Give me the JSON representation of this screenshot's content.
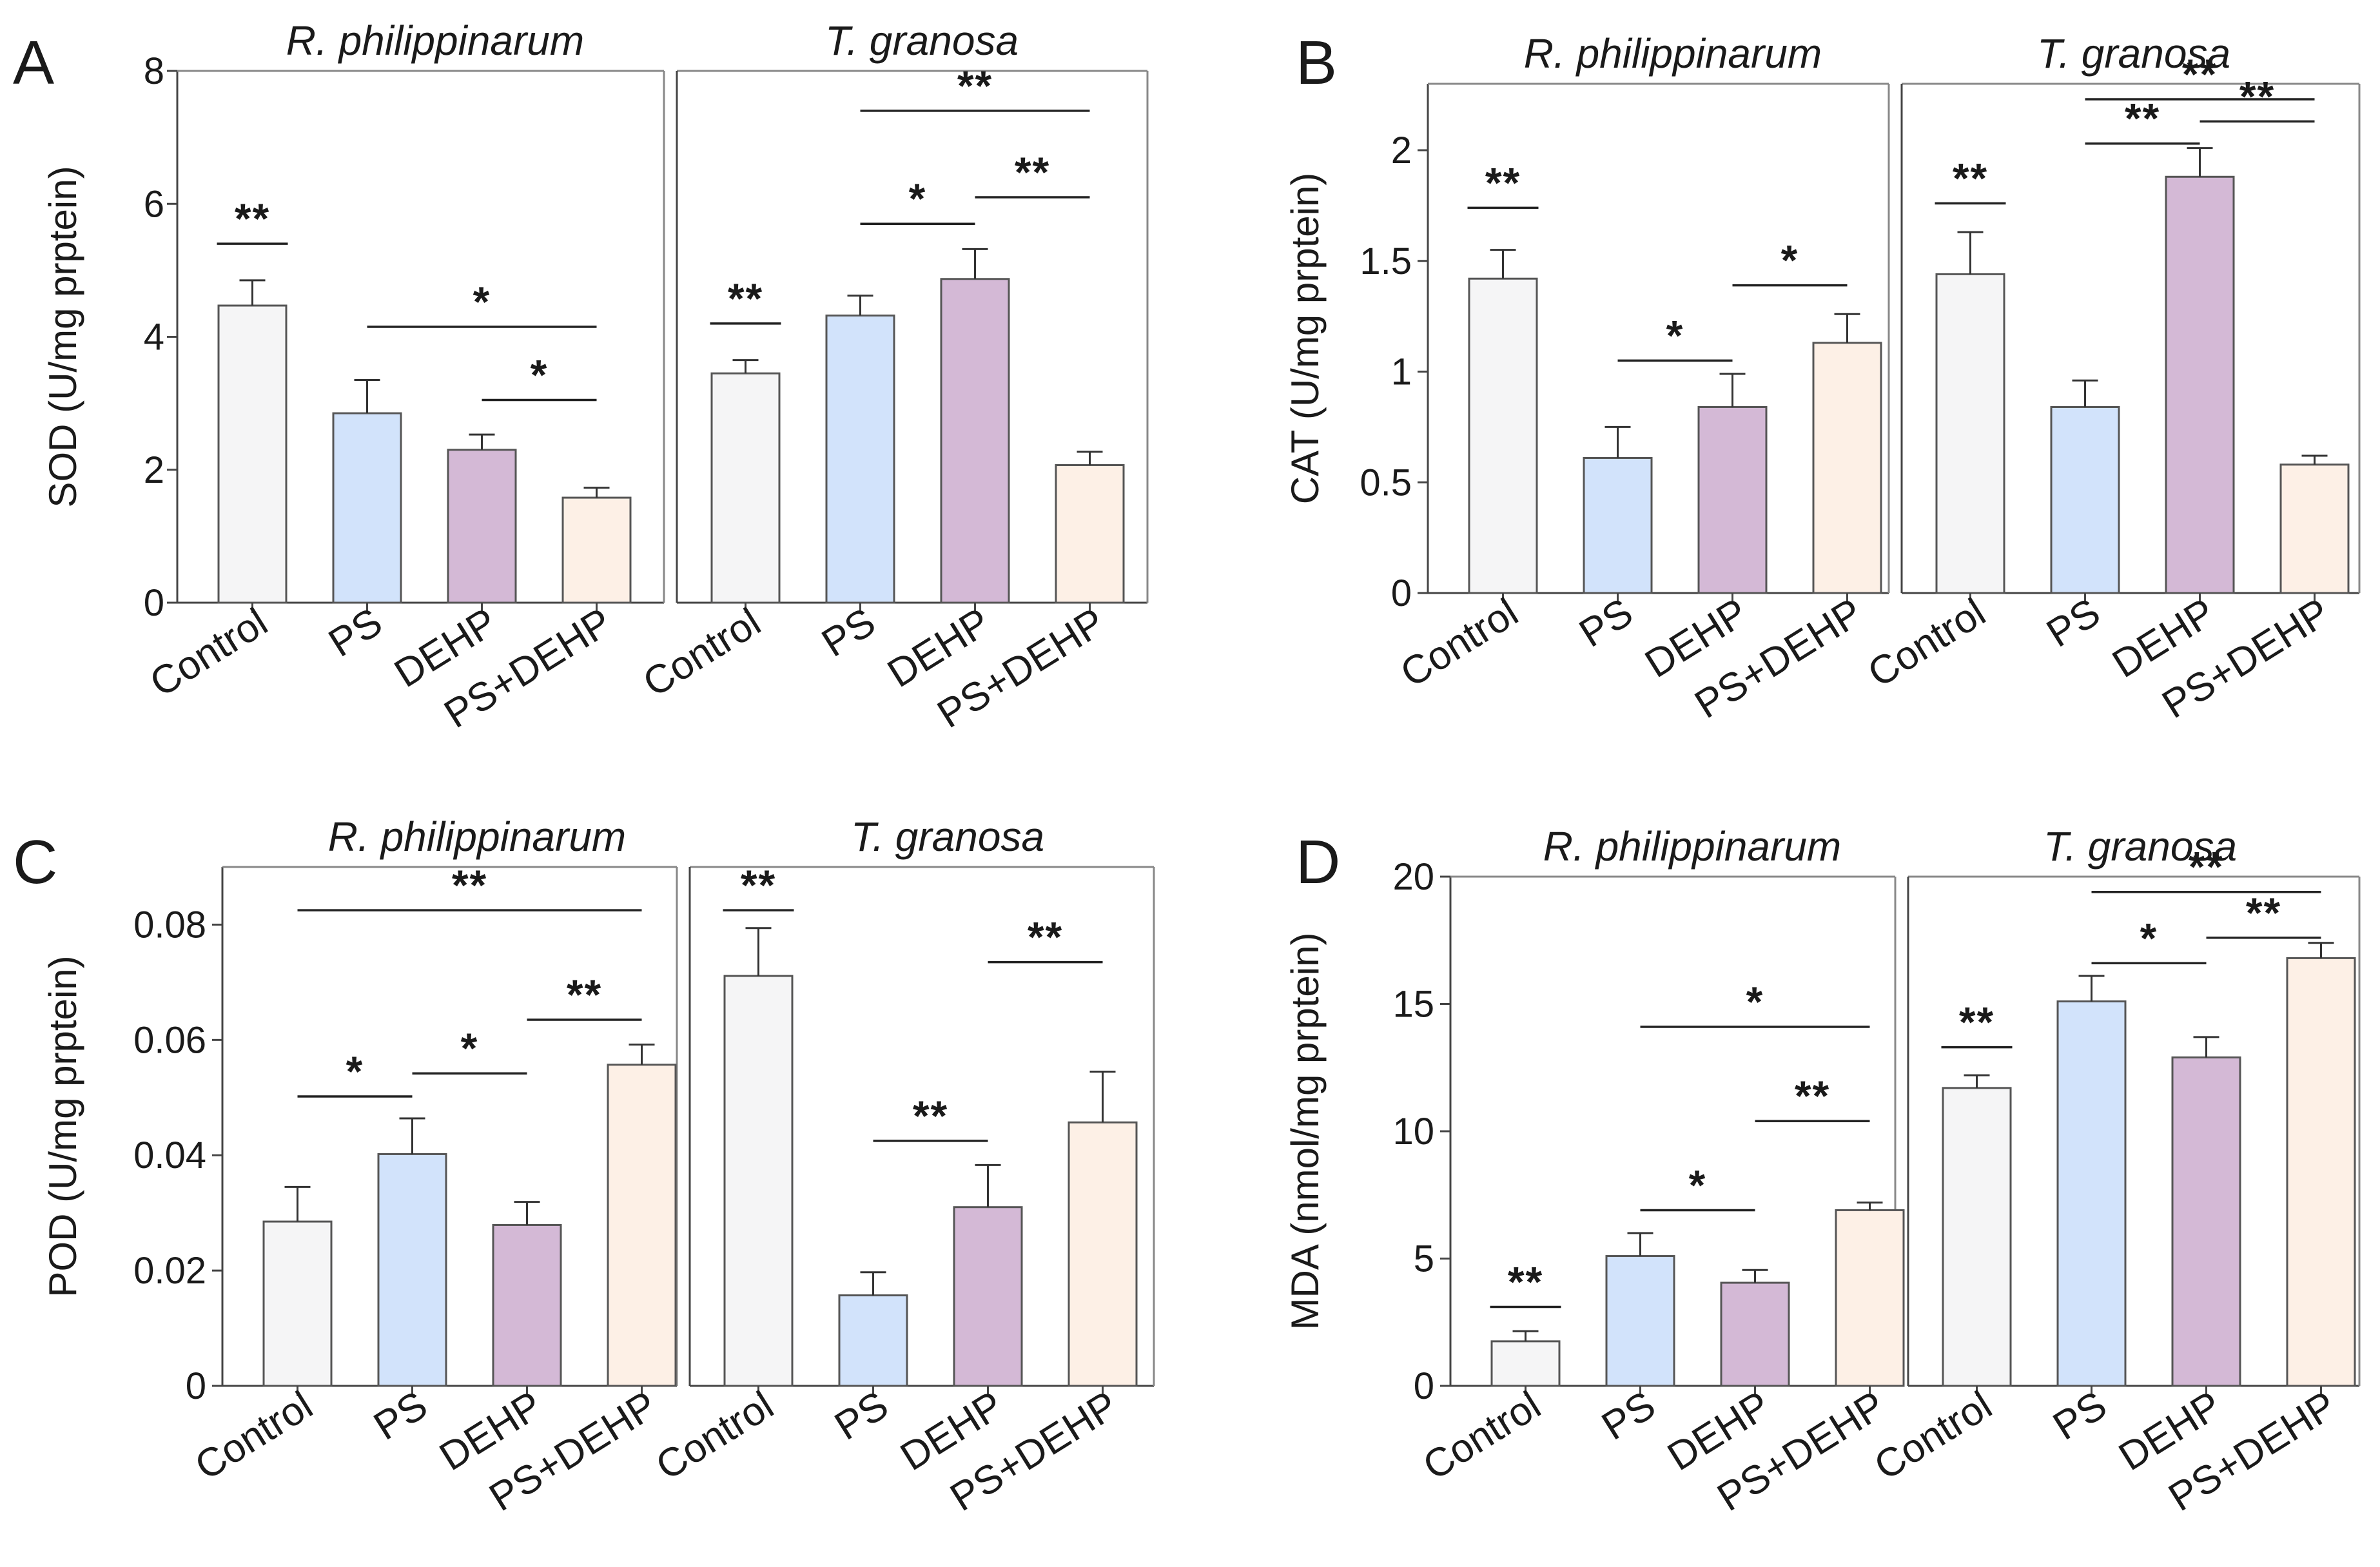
{
  "chart_data": [
    {
      "type": "bar",
      "panel_label": "A",
      "ylabel": "SOD (U/mg prptein)",
      "ylim": [
        0,
        8
      ],
      "yticks": [
        0,
        2,
        4,
        6,
        8
      ],
      "categories": [
        "Control",
        "PS",
        "DEHP",
        "PS+DEHP"
      ],
      "colors": [
        "#f5f5f6",
        "#d2e3fb",
        "#d4b9d6",
        "#fdf0e6"
      ],
      "groups": [
        {
          "title": "R. philippinarum",
          "values": [
            4.47,
            2.85,
            2.3,
            1.58
          ],
          "errors": [
            0.38,
            0.5,
            0.23,
            0.15
          ],
          "sig": [
            {
              "from": 0,
              "to": 0,
              "label": "**",
              "y": 5.4
            },
            {
              "from": 1,
              "to": 3,
              "label": "*",
              "y": 4.15
            },
            {
              "from": 2,
              "to": 3,
              "label": "*",
              "y": 3.05
            }
          ]
        },
        {
          "title": "T. granosa",
          "values": [
            3.45,
            4.32,
            4.87,
            2.07
          ],
          "errors": [
            0.2,
            0.3,
            0.45,
            0.2
          ],
          "sig": [
            {
              "from": 0,
              "to": 0,
              "label": "**",
              "y": 4.2
            },
            {
              "from": 1,
              "to": 2,
              "label": "*",
              "y": 5.7
            },
            {
              "from": 2,
              "to": 3,
              "label": "**",
              "y": 6.1
            },
            {
              "from": 1,
              "to": 3,
              "label": "**",
              "y": 7.4
            }
          ]
        }
      ]
    },
    {
      "type": "bar",
      "panel_label": "B",
      "ylabel": "CAT (U/mg prptein)",
      "ylim": [
        0,
        2.3
      ],
      "yticks": [
        0,
        0.5,
        1,
        1.5,
        2
      ],
      "ytick_labels": [
        "0",
        "0.5",
        "1",
        "1.5",
        "2"
      ],
      "categories": [
        "Control",
        "PS",
        "DEHP",
        "PS+DEHP"
      ],
      "colors": [
        "#f5f5f6",
        "#d2e3fb",
        "#d4b9d6",
        "#fdf0e6"
      ],
      "groups": [
        {
          "title": "R. philippinarum",
          "values": [
            1.42,
            0.61,
            0.84,
            1.13
          ],
          "errors": [
            0.13,
            0.14,
            0.15,
            0.13
          ],
          "sig": [
            {
              "from": 0,
              "to": 0,
              "label": "**",
              "y": 1.74
            },
            {
              "from": 1,
              "to": 2,
              "label": "*",
              "y": 1.05
            },
            {
              "from": 2,
              "to": 3,
              "label": "*",
              "y": 1.39
            }
          ]
        },
        {
          "title": "T. granosa",
          "values": [
            1.44,
            0.84,
            1.88,
            0.58
          ],
          "errors": [
            0.19,
            0.12,
            0.13,
            0.04
          ],
          "sig": [
            {
              "from": 0,
              "to": 0,
              "label": "**",
              "y": 1.76
            },
            {
              "from": 1,
              "to": 2,
              "label": "**",
              "y": 2.03
            },
            {
              "from": 2,
              "to": 3,
              "label": "**",
              "y": 2.13
            },
            {
              "from": 1,
              "to": 3,
              "label": "**",
              "y": 2.23
            }
          ]
        }
      ]
    },
    {
      "type": "bar",
      "panel_label": "C",
      "ylabel": "POD (U/mg prptein)",
      "ylim": [
        0,
        0.09
      ],
      "yticks": [
        0,
        0.02,
        0.04,
        0.06,
        0.08
      ],
      "ytick_labels": [
        "0",
        "0.02",
        "0.04",
        "0.06",
        "0.08"
      ],
      "categories": [
        "Control",
        "PS",
        "DEHP",
        "PS+DEHP"
      ],
      "colors": [
        "#f5f5f6",
        "#d2e3fb",
        "#d4b9d6",
        "#fdf0e6"
      ],
      "groups": [
        {
          "title": "R. philippinarum",
          "values": [
            0.0285,
            0.0402,
            0.0279,
            0.0557
          ],
          "errors": [
            0.006,
            0.0062,
            0.004,
            0.0035
          ],
          "sig": [
            {
              "from": 0,
              "to": 1,
              "label": "*",
              "y": 0.0502
            },
            {
              "from": 1,
              "to": 2,
              "label": "*",
              "y": 0.0542
            },
            {
              "from": 2,
              "to": 3,
              "label": "**",
              "y": 0.0635
            },
            {
              "from": 0,
              "to": 3,
              "label": "**",
              "y": 0.0825
            }
          ]
        },
        {
          "title": "T. granosa",
          "values": [
            0.0711,
            0.0157,
            0.031,
            0.0457
          ],
          "errors": [
            0.0083,
            0.004,
            0.0073,
            0.0088
          ],
          "sig": [
            {
              "from": 0,
              "to": 0,
              "label": "**",
              "y": 0.0825
            },
            {
              "from": 1,
              "to": 2,
              "label": "**",
              "y": 0.0425
            },
            {
              "from": 2,
              "to": 3,
              "label": "**",
              "y": 0.0735
            }
          ]
        }
      ]
    },
    {
      "type": "bar",
      "panel_label": "D",
      "ylabel": "MDA (nmol/mg prptein)",
      "ylim": [
        0,
        20
      ],
      "yticks": [
        0,
        5,
        10,
        15,
        20
      ],
      "ytick_labels": [
        "0",
        "5",
        "10",
        "15",
        "20"
      ],
      "categories": [
        "Control",
        "PS",
        "DEHP",
        "PS+DEHP"
      ],
      "colors": [
        "#f5f5f6",
        "#d2e3fb",
        "#d4b9d6",
        "#fdf0e6"
      ],
      "groups": [
        {
          "title": "R. philippinarum",
          "values": [
            1.75,
            5.1,
            4.05,
            6.9
          ],
          "errors": [
            0.4,
            0.9,
            0.5,
            0.3
          ],
          "sig": [
            {
              "from": 0,
              "to": 0,
              "label": "**",
              "y": 3.1
            },
            {
              "from": 1,
              "to": 2,
              "label": "*",
              "y": 6.9
            },
            {
              "from": 1,
              "to": 3,
              "label": "*",
              "y": 14.1
            },
            {
              "from": 2,
              "to": 3,
              "label": "**",
              "y": 10.4
            }
          ]
        },
        {
          "title": "T. granosa",
          "values": [
            11.7,
            15.1,
            12.9,
            16.8
          ],
          "errors": [
            0.5,
            1.0,
            0.8,
            0.6
          ],
          "sig": [
            {
              "from": 0,
              "to": 0,
              "label": "**",
              "y": 13.3
            },
            {
              "from": 1,
              "to": 2,
              "label": "*",
              "y": 16.6
            },
            {
              "from": 2,
              "to": 3,
              "label": "**",
              "y": 17.6
            },
            {
              "from": 1,
              "to": 3,
              "label": "**",
              "y": 19.4
            }
          ]
        }
      ]
    }
  ]
}
